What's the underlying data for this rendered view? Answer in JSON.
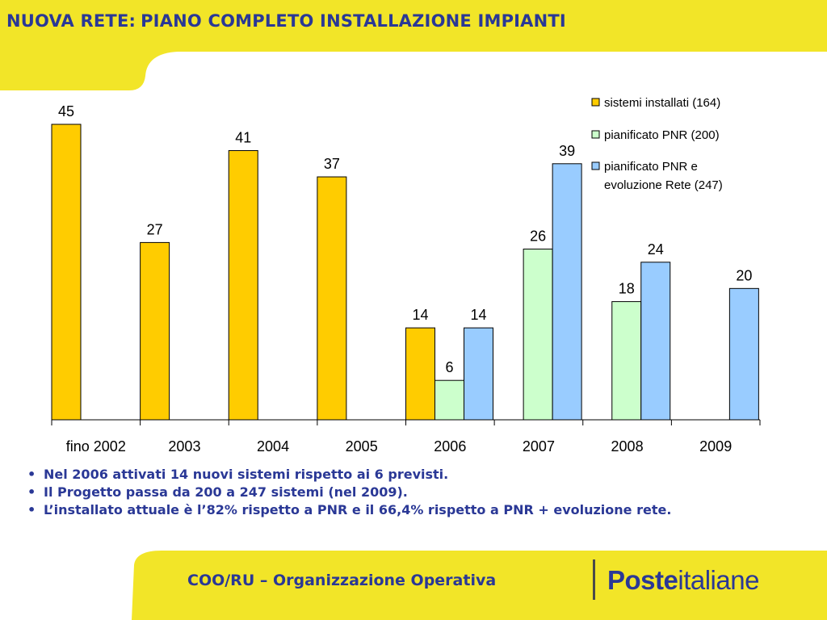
{
  "title": {
    "part1": "NUOVA RETE:",
    "part2": "PIANO COMPLETO INSTALLAZIONE IMPIANTI"
  },
  "colors": {
    "bg": "#f2e528",
    "panel": "#ffffff",
    "title": "#2a3896",
    "installed": "#ffcc00",
    "pnr": "#ccffcc",
    "evolution": "#99ccff"
  },
  "chart_data": {
    "type": "bar",
    "categories": [
      "fino 2002",
      "2003",
      "2004",
      "2005",
      "2006",
      "2007",
      "2008",
      "2009"
    ],
    "series": [
      {
        "name": "sistemi installati (164)",
        "color": "#ffcc00",
        "values": [
          45,
          27,
          41,
          37,
          14,
          null,
          null,
          null
        ]
      },
      {
        "name": "pianificato PNR (200)",
        "color": "#ccffcc",
        "values": [
          null,
          null,
          null,
          null,
          6,
          26,
          18,
          null
        ]
      },
      {
        "name": "pianificato PNR e evoluzione Rete (247)",
        "name_lines": [
          "pianificato PNR e",
          "evoluzione Rete (247)"
        ],
        "color": "#99ccff",
        "values": [
          null,
          null,
          null,
          null,
          14,
          39,
          24,
          20
        ]
      }
    ],
    "ylim": [
      0,
      45
    ],
    "grid": false,
    "legend": "top-right",
    "data_labels": true
  },
  "bullets": [
    "Nel 2006 attivati 14 nuovi sistemi rispetto ai 6 previsti.",
    "Il Progetto passa da 200 a 247 sistemi (nel 2009).",
    "L’installato attuale è l’82% rispetto a PNR e il 66,4% rispetto a PNR + evoluzione rete."
  ],
  "bullet_glyph": "•",
  "footer": {
    "text": "COO/RU – Organizzazione Operativa"
  },
  "logo": {
    "bold": "Poste",
    "regular": "italiane"
  }
}
